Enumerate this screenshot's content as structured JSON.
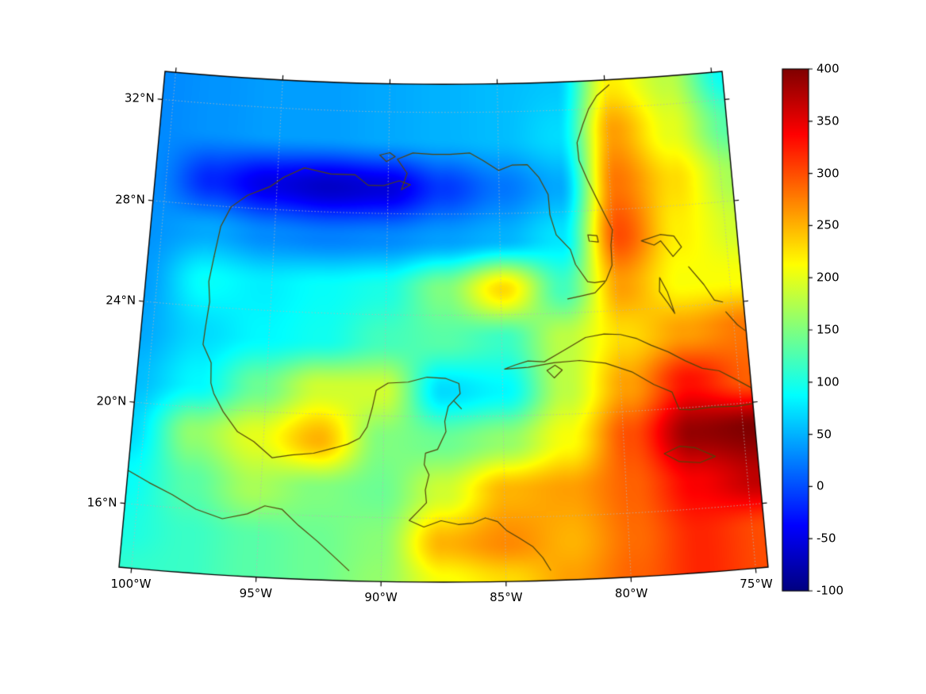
{
  "figure": {
    "background": "#ffffff"
  },
  "map": {
    "coastline_color": "#53430a",
    "grid_color": "#b8b8b8",
    "frame_color": "#000000",
    "label_color": "#000000"
  },
  "chart_data": {
    "type": "heatmap",
    "projection": {
      "name": "lambert-conformal-conic",
      "center_lon": -87.5,
      "std_parallel_1": 18,
      "std_parallel_2": 30,
      "extent": {
        "lon_min": -100.5,
        "lon_max": -74.5,
        "lat_min": 13.5,
        "lat_max": 33.1
      }
    },
    "x_ticks": [
      {
        "lon": -100,
        "label": "100°W"
      },
      {
        "lon": -95,
        "label": "95°W"
      },
      {
        "lon": -90,
        "label": "90°W"
      },
      {
        "lon": -85,
        "label": "85°W"
      },
      {
        "lon": -80,
        "label": "80°W"
      },
      {
        "lon": -75,
        "label": "75°W"
      }
    ],
    "y_ticks": [
      {
        "lat": 16,
        "label": "16°N"
      },
      {
        "lat": 20,
        "label": "20°N"
      },
      {
        "lat": 24,
        "label": "24°N"
      },
      {
        "lat": 28,
        "label": "28°N"
      },
      {
        "lat": 32,
        "label": "32°N"
      }
    ],
    "grid_lons": [
      -100,
      -95,
      -90,
      -85,
      -80,
      -75
    ],
    "grid_lats": [
      16,
      20,
      24,
      28,
      32
    ],
    "colorbar": {
      "min": -100,
      "max": 400,
      "tick_values": [
        400,
        350,
        300,
        250,
        200,
        150,
        100,
        50,
        0,
        -50,
        -100
      ],
      "tick_labels": [
        "400",
        "350",
        "300",
        "250",
        "200",
        "150",
        "100",
        "50",
        "0",
        "-50",
        "-100"
      ]
    },
    "colormap": {
      "name": "jet",
      "stops": [
        {
          "pos": 0.0,
          "color": "#000080"
        },
        {
          "pos": 0.125,
          "color": "#0000ff"
        },
        {
          "pos": 0.375,
          "color": "#00ffff"
        },
        {
          "pos": 0.625,
          "color": "#ffff00"
        },
        {
          "pos": 0.875,
          "color": "#ff0000"
        },
        {
          "pos": 1.0,
          "color": "#800000"
        }
      ]
    },
    "field": {
      "lons": [
        -100.5,
        -97.9,
        -95.3,
        -92.7,
        -90.1,
        -87.5,
        -84.9,
        -82.3,
        -79.7,
        -77.1,
        -74.5
      ],
      "lats": [
        33.1,
        31,
        29,
        27,
        25,
        23,
        21,
        19,
        17,
        15,
        13.5
      ],
      "values": [
        [
          30,
          35,
          40,
          40,
          45,
          50,
          55,
          60,
          220,
          180,
          90
        ],
        [
          30,
          35,
          40,
          40,
          45,
          50,
          55,
          70,
          260,
          200,
          130
        ],
        [
          30,
          -20,
          -50,
          -65,
          -55,
          -10,
          20,
          45,
          280,
          230,
          170
        ],
        [
          35,
          45,
          30,
          25,
          30,
          40,
          50,
          75,
          300,
          220,
          190
        ],
        [
          40,
          90,
          80,
          90,
          100,
          150,
          230,
          120,
          260,
          210,
          210
        ],
        [
          45,
          70,
          85,
          95,
          120,
          130,
          115,
          180,
          230,
          260,
          280
        ],
        [
          55,
          85,
          140,
          190,
          190,
          70,
          85,
          180,
          260,
          330,
          290
        ],
        [
          70,
          160,
          200,
          250,
          150,
          140,
          160,
          210,
          300,
          390,
          400
        ],
        [
          90,
          130,
          170,
          150,
          140,
          190,
          250,
          260,
          290,
          340,
          370
        ],
        [
          100,
          115,
          130,
          140,
          155,
          250,
          270,
          250,
          285,
          320,
          300
        ],
        [
          110,
          115,
          130,
          140,
          160,
          210,
          230,
          260,
          290,
          320,
          300
        ]
      ]
    },
    "coastlines": [
      {
        "name": "us-gulf-atlantic-coast",
        "points": [
          [
            -97.6,
            26.0
          ],
          [
            -97.4,
            27.2
          ],
          [
            -97.0,
            28.0
          ],
          [
            -96.3,
            28.5
          ],
          [
            -95.3,
            28.9
          ],
          [
            -94.7,
            29.3
          ],
          [
            -93.8,
            29.7
          ],
          [
            -92.6,
            29.5
          ],
          [
            -91.5,
            29.5
          ],
          [
            -90.9,
            29.1
          ],
          [
            -90.2,
            29.1
          ],
          [
            -89.5,
            29.3
          ],
          [
            -89.0,
            29.15
          ],
          [
            -89.4,
            28.95
          ],
          [
            -89.15,
            29.6
          ],
          [
            -89.6,
            30.15
          ],
          [
            -88.9,
            30.4
          ],
          [
            -88.0,
            30.35
          ],
          [
            -87.2,
            30.35
          ],
          [
            -86.3,
            30.4
          ],
          [
            -85.7,
            30.1
          ],
          [
            -85.0,
            29.7
          ],
          [
            -84.4,
            29.9
          ],
          [
            -83.7,
            29.9
          ],
          [
            -83.2,
            29.4
          ],
          [
            -82.8,
            28.7
          ],
          [
            -82.75,
            27.9
          ],
          [
            -82.5,
            27.1
          ],
          [
            -81.9,
            26.5
          ],
          [
            -81.7,
            25.9
          ],
          [
            -81.2,
            25.2
          ],
          [
            -80.9,
            25.15
          ],
          [
            -80.4,
            25.2
          ],
          [
            -80.1,
            25.8
          ],
          [
            -80.1,
            26.6
          ],
          [
            -80.0,
            27.2
          ],
          [
            -80.35,
            27.9
          ],
          [
            -80.6,
            28.4
          ],
          [
            -81.0,
            29.2
          ],
          [
            -81.35,
            30.0
          ],
          [
            -81.4,
            30.7
          ],
          [
            -81.1,
            31.4
          ],
          [
            -80.8,
            32.0
          ],
          [
            -80.4,
            32.5
          ],
          [
            -79.8,
            32.9
          ]
        ]
      },
      {
        "name": "mexico-central-america-coast",
        "points": [
          [
            -97.6,
            26.0
          ],
          [
            -97.75,
            25.0
          ],
          [
            -97.65,
            24.2
          ],
          [
            -97.75,
            23.2
          ],
          [
            -97.8,
            22.5
          ],
          [
            -97.4,
            21.8
          ],
          [
            -97.35,
            21.0
          ],
          [
            -97.2,
            20.6
          ],
          [
            -96.75,
            19.9
          ],
          [
            -96.1,
            19.15
          ],
          [
            -95.4,
            18.8
          ],
          [
            -94.6,
            18.2
          ],
          [
            -93.8,
            18.35
          ],
          [
            -92.9,
            18.45
          ],
          [
            -92.0,
            18.7
          ],
          [
            -91.5,
            18.85
          ],
          [
            -91.0,
            19.1
          ],
          [
            -90.7,
            19.55
          ],
          [
            -90.5,
            20.3
          ],
          [
            -90.35,
            21.0
          ],
          [
            -89.85,
            21.3
          ],
          [
            -89.0,
            21.35
          ],
          [
            -88.2,
            21.55
          ],
          [
            -87.4,
            21.5
          ],
          [
            -86.85,
            21.3
          ],
          [
            -86.8,
            20.9
          ],
          [
            -87.3,
            20.4
          ],
          [
            -87.45,
            19.8
          ],
          [
            -87.4,
            19.4
          ],
          [
            -87.75,
            18.7
          ],
          [
            -88.25,
            18.55
          ],
          [
            -88.3,
            18.1
          ],
          [
            -88.1,
            17.7
          ],
          [
            -88.25,
            17.1
          ],
          [
            -88.2,
            16.6
          ],
          [
            -88.55,
            16.25
          ],
          [
            -88.9,
            15.9
          ],
          [
            -88.3,
            15.65
          ],
          [
            -87.6,
            15.9
          ],
          [
            -86.9,
            15.75
          ],
          [
            -86.3,
            15.8
          ],
          [
            -85.8,
            16.0
          ],
          [
            -85.3,
            15.85
          ],
          [
            -84.95,
            15.5
          ],
          [
            -84.45,
            15.2
          ],
          [
            -83.9,
            14.85
          ],
          [
            -83.5,
            14.4
          ],
          [
            -83.2,
            13.9
          ]
        ]
      },
      {
        "name": "mexico-pacific-coast",
        "points": [
          [
            -100.5,
            17.3
          ],
          [
            -99.6,
            16.9
          ],
          [
            -98.6,
            16.5
          ],
          [
            -97.6,
            16.0
          ],
          [
            -96.5,
            15.7
          ],
          [
            -95.5,
            15.95
          ],
          [
            -94.8,
            16.3
          ],
          [
            -94.1,
            16.2
          ],
          [
            -93.4,
            15.6
          ],
          [
            -92.6,
            15.0
          ],
          [
            -92.0,
            14.5
          ],
          [
            -91.3,
            13.9
          ]
        ]
      },
      {
        "name": "cuba",
        "points": [
          [
            -84.9,
            21.85
          ],
          [
            -84.45,
            22.0
          ],
          [
            -83.9,
            22.15
          ],
          [
            -83.2,
            22.1
          ],
          [
            -82.6,
            22.4
          ],
          [
            -82.1,
            22.65
          ],
          [
            -81.4,
            23.0
          ],
          [
            -80.6,
            23.1
          ],
          [
            -79.9,
            23.05
          ],
          [
            -79.2,
            22.85
          ],
          [
            -78.6,
            22.55
          ],
          [
            -77.9,
            22.25
          ],
          [
            -77.2,
            21.85
          ],
          [
            -76.5,
            21.5
          ],
          [
            -75.8,
            21.35
          ],
          [
            -75.2,
            21.0
          ],
          [
            -74.55,
            20.6
          ],
          [
            -74.15,
            20.2
          ],
          [
            -74.35,
            19.95
          ],
          [
            -75.2,
            19.9
          ],
          [
            -76.2,
            19.95
          ],
          [
            -77.1,
            19.9
          ],
          [
            -77.6,
            19.95
          ],
          [
            -77.85,
            20.65
          ],
          [
            -78.6,
            21.0
          ],
          [
            -79.5,
            21.55
          ],
          [
            -80.6,
            21.95
          ],
          [
            -81.7,
            22.1
          ],
          [
            -82.8,
            22.05
          ],
          [
            -83.9,
            21.9
          ],
          [
            -84.9,
            21.85
          ]
        ]
      },
      {
        "name": "isla-de-la-juventud",
        "points": [
          [
            -83.1,
            21.75
          ],
          [
            -82.75,
            21.95
          ],
          [
            -82.45,
            21.75
          ],
          [
            -82.8,
            21.45
          ],
          [
            -83.1,
            21.75
          ]
        ]
      },
      {
        "name": "jamaica",
        "points": [
          [
            -78.35,
            18.25
          ],
          [
            -77.7,
            18.5
          ],
          [
            -77.05,
            18.4
          ],
          [
            -76.25,
            18.0
          ],
          [
            -76.9,
            17.8
          ],
          [
            -77.75,
            17.9
          ],
          [
            -78.35,
            18.25
          ]
        ]
      },
      {
        "name": "hispaniola-west",
        "points": [
          [
            -74.5,
            20.1
          ],
          [
            -74.0,
            19.75
          ],
          [
            -73.6,
            19.35
          ],
          [
            -74.45,
            18.6
          ],
          [
            -73.9,
            18.6
          ],
          [
            -74.45,
            18.35
          ],
          [
            -74.5,
            18.1
          ]
        ]
      },
      {
        "name": "bahamas-grand-bahama-abaco",
        "points": [
          [
            -78.75,
            26.7
          ],
          [
            -78.2,
            26.5
          ],
          [
            -77.9,
            26.65
          ],
          [
            -77.4,
            26.0
          ],
          [
            -77.0,
            26.35
          ],
          [
            -77.3,
            26.8
          ],
          [
            -77.9,
            26.9
          ],
          [
            -78.75,
            26.7
          ]
        ]
      },
      {
        "name": "bahamas-andros",
        "points": [
          [
            -78.05,
            25.2
          ],
          [
            -77.75,
            24.6
          ],
          [
            -77.5,
            23.75
          ],
          [
            -77.75,
            24.15
          ],
          [
            -78.1,
            24.65
          ],
          [
            -78.05,
            25.2
          ]
        ]
      },
      {
        "name": "bahamas-eleuthera",
        "points": [
          [
            -76.75,
            25.55
          ],
          [
            -76.15,
            24.8
          ],
          [
            -75.75,
            24.15
          ],
          [
            -75.4,
            24.05
          ]
        ]
      },
      {
        "name": "bahamas-long-island",
        "points": [
          [
            -75.3,
            23.65
          ],
          [
            -74.85,
            23.1
          ],
          [
            -74.55,
            22.85
          ]
        ]
      },
      {
        "name": "florida-keys",
        "points": [
          [
            -80.45,
            25.15
          ],
          [
            -80.9,
            24.75
          ],
          [
            -81.5,
            24.65
          ],
          [
            -82.1,
            24.55
          ]
        ]
      },
      {
        "name": "lake-okeechobee",
        "points": [
          [
            -81.1,
            27.05
          ],
          [
            -80.7,
            27.0
          ],
          [
            -80.65,
            26.75
          ],
          [
            -81.05,
            26.8
          ],
          [
            -81.1,
            27.05
          ]
        ]
      },
      {
        "name": "lake-pontchartrain",
        "points": [
          [
            -90.4,
            30.3
          ],
          [
            -89.95,
            30.4
          ],
          [
            -89.7,
            30.25
          ],
          [
            -90.1,
            30.05
          ],
          [
            -90.4,
            30.3
          ]
        ]
      },
      {
        "name": "cozumel",
        "points": [
          [
            -87.05,
            20.6
          ],
          [
            -86.75,
            20.3
          ]
        ]
      }
    ]
  }
}
